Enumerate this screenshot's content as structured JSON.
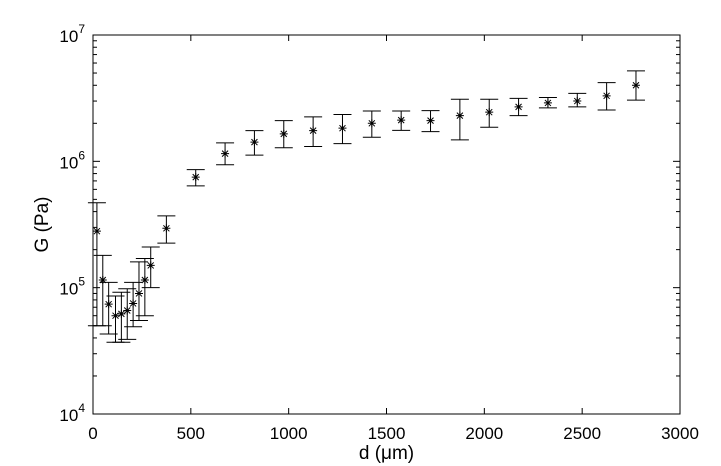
{
  "chart_data": {
    "type": "scatter",
    "title": "",
    "xlabel": "d (μm)",
    "ylabel": "G (Pa)",
    "xlim": [
      0,
      3000
    ],
    "ylim": [
      10000,
      10000000
    ],
    "y_scale": "log",
    "grid": false,
    "marker": "asterisk",
    "x_ticks": [
      {
        "value": 0,
        "label": "0"
      },
      {
        "value": 500,
        "label": "500"
      },
      {
        "value": 1000,
        "label": "1000"
      },
      {
        "value": 1500,
        "label": "1500"
      },
      {
        "value": 2000,
        "label": "2000"
      },
      {
        "value": 2500,
        "label": "2500"
      },
      {
        "value": 3000,
        "label": "3000"
      }
    ],
    "y_ticks": [
      {
        "value": 10000,
        "base": "10",
        "exp": "4"
      },
      {
        "value": 100000,
        "base": "10",
        "exp": "5"
      },
      {
        "value": 1000000,
        "base": "10",
        "exp": "6"
      },
      {
        "value": 10000000,
        "base": "10",
        "exp": "7"
      }
    ],
    "points": [
      {
        "x": 20,
        "y": 280000,
        "y_low": 50000,
        "y_high": 470000
      },
      {
        "x": 50,
        "y": 115000,
        "y_low": 50000,
        "y_high": 180000
      },
      {
        "x": 80,
        "y": 74000,
        "y_low": 43000,
        "y_high": 110000
      },
      {
        "x": 115,
        "y": 60000,
        "y_low": 37000,
        "y_high": 86000
      },
      {
        "x": 145,
        "y": 62000,
        "y_low": 37000,
        "y_high": 92000
      },
      {
        "x": 175,
        "y": 66000,
        "y_low": 39000,
        "y_high": 98000
      },
      {
        "x": 205,
        "y": 75000,
        "y_low": 49000,
        "y_high": 110000
      },
      {
        "x": 235,
        "y": 90000,
        "y_low": 55000,
        "y_high": 160000
      },
      {
        "x": 265,
        "y": 115000,
        "y_low": 60000,
        "y_high": 170000
      },
      {
        "x": 295,
        "y": 150000,
        "y_low": 100000,
        "y_high": 210000
      },
      {
        "x": 375,
        "y": 295000,
        "y_low": 225000,
        "y_high": 370000
      },
      {
        "x": 525,
        "y": 750000,
        "y_low": 640000,
        "y_high": 860000
      },
      {
        "x": 675,
        "y": 1150000,
        "y_low": 940000,
        "y_high": 1400000
      },
      {
        "x": 825,
        "y": 1420000,
        "y_low": 1120000,
        "y_high": 1750000
      },
      {
        "x": 975,
        "y": 1650000,
        "y_low": 1280000,
        "y_high": 2100000
      },
      {
        "x": 1125,
        "y": 1750000,
        "y_low": 1310000,
        "y_high": 2250000
      },
      {
        "x": 1275,
        "y": 1830000,
        "y_low": 1380000,
        "y_high": 2350000
      },
      {
        "x": 1425,
        "y": 2000000,
        "y_low": 1550000,
        "y_high": 2500000
      },
      {
        "x": 1575,
        "y": 2120000,
        "y_low": 1760000,
        "y_high": 2500000
      },
      {
        "x": 1725,
        "y": 2100000,
        "y_low": 1720000,
        "y_high": 2520000
      },
      {
        "x": 1875,
        "y": 2300000,
        "y_low": 1480000,
        "y_high": 3100000
      },
      {
        "x": 2025,
        "y": 2450000,
        "y_low": 1860000,
        "y_high": 3100000
      },
      {
        "x": 2175,
        "y": 2700000,
        "y_low": 2300000,
        "y_high": 3150000
      },
      {
        "x": 2325,
        "y": 2900000,
        "y_low": 2650000,
        "y_high": 3200000
      },
      {
        "x": 2475,
        "y": 3000000,
        "y_low": 2700000,
        "y_high": 3450000
      },
      {
        "x": 2625,
        "y": 3300000,
        "y_low": 2550000,
        "y_high": 4200000
      },
      {
        "x": 2775,
        "y": 4000000,
        "y_low": 3050000,
        "y_high": 5200000
      }
    ]
  }
}
